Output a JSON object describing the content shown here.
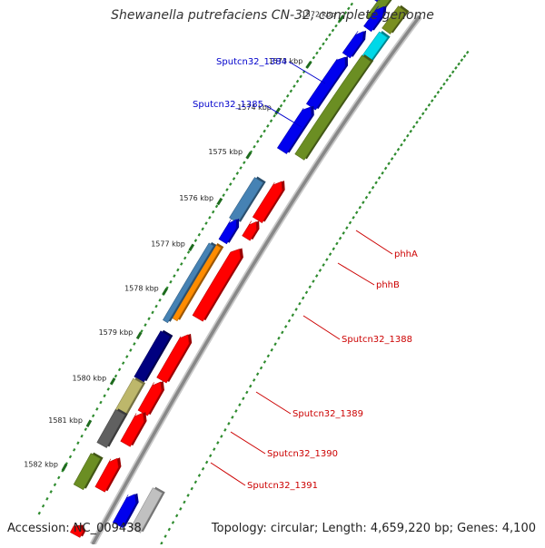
{
  "title": "Shewanella putrefaciens CN-32, complete genome",
  "accession_text": "Accession: NC_009438",
  "summary_text": "Topology: circular; Length: 4,659,220 bp; Genes: 4,100",
  "colors": {
    "backbone": "#888888",
    "tick": "#2e8b2e",
    "scale_text": "#222222",
    "label_blue": "#0000cc",
    "label_red": "#cc0000"
  },
  "kbp_ticks": [
    "1572 kbp",
    "1573 kbp",
    "1574 kbp",
    "1575 kbp",
    "1576 kbp",
    "1577 kbp",
    "1578 kbp",
    "1579 kbp",
    "1580 kbp",
    "1581 kbp",
    "1582 kbp"
  ],
  "gene_labels": [
    {
      "text": "Sputcn32_1384",
      "color": "blue"
    },
    {
      "text": "Sputcn32_1385",
      "color": "blue"
    },
    {
      "text": "phhA",
      "color": "red"
    },
    {
      "text": "phhB",
      "color": "red"
    },
    {
      "text": "Sputcn32_1388",
      "color": "red"
    },
    {
      "text": "Sputcn32_1389",
      "color": "red"
    },
    {
      "text": "Sputcn32_1390",
      "color": "red"
    },
    {
      "text": "Sputcn32_1391",
      "color": "red"
    }
  ]
}
